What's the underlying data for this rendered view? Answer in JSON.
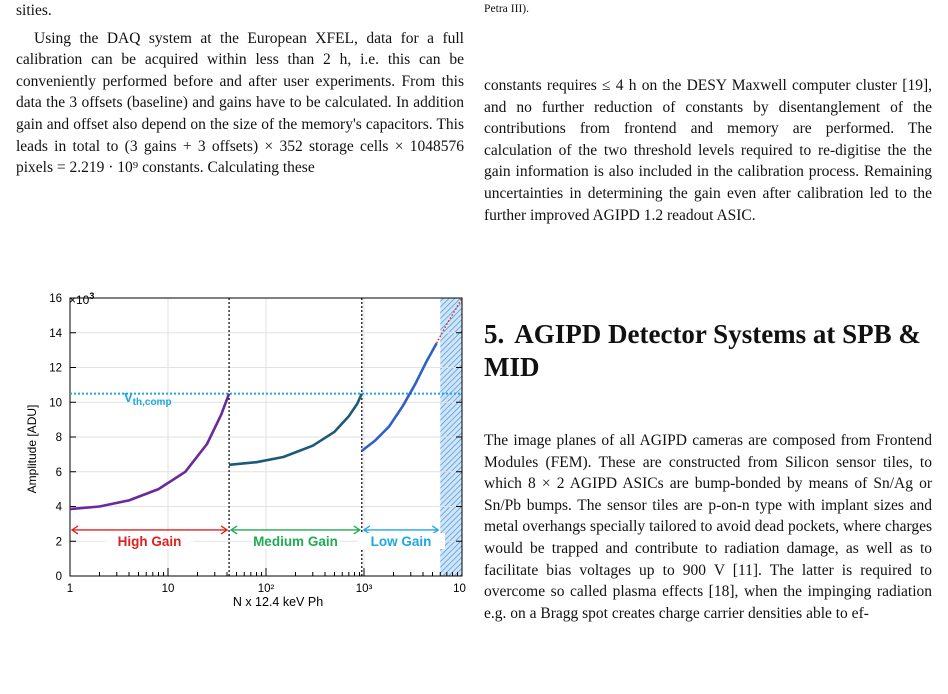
{
  "left_column": {
    "frag1": "sities.",
    "para1": "Using the DAQ system at the European XFEL, data for a full calibration can be acquired within less than 2 h, i.e. this can be conveniently performed before and after user experiments. From this data the 3 offsets (baseline) and gains have to be calculated. In addition gain and offset also depend on the size of the memory's capacitors. This leads in total to (3 gains + 3 offsets) × 352 storage cells × 1048576 pixels = 2.219 · 10⁹ constants. Calculating these"
  },
  "right_column": {
    "caption_tail": "Petra III).",
    "para1": "constants requires ≤ 4 h on the DESY Maxwell computer cluster [19], and no further reduction of constants by disentanglement of the contributions from frontend and memory are performed. The calculation of the two threshold levels required to re-digitise the the gain information is also included in the calibration process. Remaining uncertainties in determining the gain even after calibration led to the further improved AGIPD 1.2 readout ASIC.",
    "section_number": "5.",
    "section_title": "AGIPD Detector Systems at SPB & MID",
    "para2": "The image planes of all AGIPD cameras are composed from Frontend Modules (FEM). These are constructed from Silicon sensor tiles, to which 8 × 2 AGIPD ASICs are bump-bonded by means of Sn/Ag or Sn/Pb bumps. The sensor tiles are p-on-n type with implant sizes and metal overhangs specially tailored to avoid dead pockets, where charges would be trapped and contribute to radiation damage, as well as to facilitate bias voltages up to 900 V [11]. The latter is required to overcome so called plasma effects [18], when the impinging radiation e.g. on a Bragg spot creates charge carrier densities able to ef-"
  },
  "chart_data": {
    "type": "line",
    "xlabel": "N x 12.4 keV Ph",
    "ylabel": "Amplitude [ADU]",
    "y_multiplier": "×10",
    "y_multiplier_exp": "3",
    "xscale": "log",
    "xlim": [
      1,
      10000
    ],
    "ylim": [
      0,
      16
    ],
    "x_tick_labels": [
      "1",
      "10",
      "10²",
      "10³",
      "10⁴"
    ],
    "y_ticks": [
      0,
      2,
      4,
      6,
      8,
      10,
      12,
      14,
      16
    ],
    "threshold": {
      "label": "V",
      "label_sub": "th,comp",
      "value": 10.5,
      "color": "#1ea7e0"
    },
    "gain_switches": [
      42,
      950
    ],
    "saturation_from": 6000,
    "regions": [
      {
        "label": "High Gain",
        "from": 1,
        "to": 42,
        "color": "#e02020"
      },
      {
        "label": "Medium Gain",
        "from": 42,
        "to": 950,
        "color": "#22aa55"
      },
      {
        "label": "Low Gain",
        "from": 950,
        "to": 6000,
        "color": "#1ea7e0"
      }
    ],
    "series": [
      {
        "color": "#6a2a9a",
        "x": [
          1,
          2,
          4,
          8,
          15,
          25,
          35,
          42
        ],
        "y": [
          3.85,
          4.0,
          4.35,
          5.0,
          6.0,
          7.6,
          9.3,
          10.5
        ]
      },
      {
        "color": "#1d5a78",
        "x": [
          42,
          80,
          150,
          300,
          500,
          700,
          850,
          950
        ],
        "y": [
          6.4,
          6.55,
          6.85,
          7.5,
          8.3,
          9.2,
          9.9,
          10.5
        ]
      },
      {
        "color": "#2f60c8",
        "x": [
          950,
          1300,
          1800,
          2500,
          3300,
          4300,
          5500
        ],
        "y": [
          7.2,
          7.8,
          8.6,
          9.8,
          11.0,
          12.3,
          13.4
        ]
      },
      {
        "color": "#d03030",
        "x": [
          5500,
          7000,
          8500,
          10000
        ],
        "y": [
          13.4,
          14.5,
          15.3,
          16.0
        ]
      }
    ]
  }
}
